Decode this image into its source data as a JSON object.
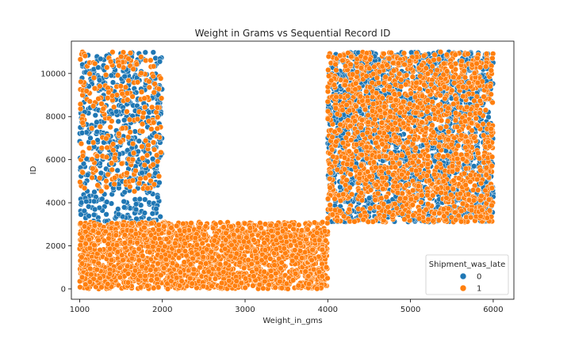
{
  "chart_data": {
    "type": "scatter",
    "title": "Weight in Grams vs Sequential Record ID",
    "xlabel": "Weight_in_gms",
    "ylabel": "ID",
    "xlim": [
      900,
      6250
    ],
    "ylim": [
      -480,
      11500
    ],
    "xticks": [
      1000,
      2000,
      3000,
      4000,
      5000,
      6000
    ],
    "yticks": [
      0,
      2000,
      4000,
      6000,
      8000,
      10000
    ],
    "grid": false,
    "legend": {
      "title": "Shipment_was_late",
      "placement": "lower-right",
      "entries": [
        {
          "label": "0",
          "color": "#1f77b4"
        },
        {
          "label": "1",
          "color": "#ff7f0e"
        }
      ]
    },
    "series": [
      {
        "name": "0",
        "color": "#1f77b4",
        "clusters": [
          {
            "x": [
              1000,
              2000
            ],
            "y": [
              3100,
              11000
            ],
            "approx_points": 600
          },
          {
            "x": [
              4000,
              6000
            ],
            "y": [
              3100,
              11000
            ],
            "approx_points": 1800
          }
        ]
      },
      {
        "name": "1",
        "color": "#ff7f0e",
        "clusters": [
          {
            "x": [
              1000,
              2000
            ],
            "y": [
              4500,
              11000
            ],
            "approx_points": 250
          },
          {
            "x": [
              1000,
              4000
            ],
            "y": [
              0,
              3100
            ],
            "approx_points": 2300
          },
          {
            "x": [
              4000,
              6000
            ],
            "y": [
              3100,
              11000
            ],
            "approx_points": 1700
          }
        ]
      }
    ]
  }
}
